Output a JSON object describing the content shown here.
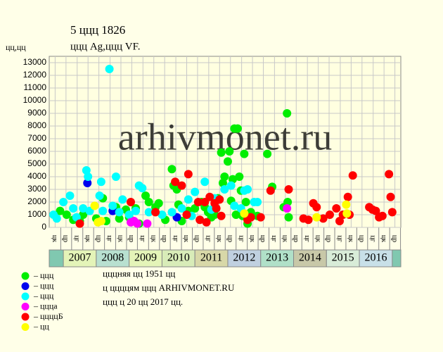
{
  "chart_data": {
    "type": "scatter",
    "title": "5 ццц 1826",
    "subtitle": "ццц Ag,ццц VF.",
    "y_label": "цц,цц",
    "watermark": "arhivmonet.ru",
    "notes": [
      "цццняя цц 1951 цц",
      "ц ццццям ццц ARHIVMONET.RU",
      "ццц ц 20 цц 2017 цц."
    ],
    "grid": true,
    "xlim": [
      2006.57,
      2017.26
    ],
    "ylim": [
      0,
      13500
    ],
    "yticks": [
      0,
      1000,
      2000,
      3000,
      4000,
      5000,
      6000,
      7000,
      8000,
      9000,
      10000,
      11000,
      12000,
      13000
    ],
    "xticks": [
      {
        "value": 2006.75,
        "label": "цк"
      },
      {
        "value": 2007.08,
        "label": "цр"
      },
      {
        "value": 2007.42,
        "label": "цг"
      },
      {
        "value": 2007.75,
        "label": "цк"
      },
      {
        "value": 2008.08,
        "label": "цр"
      },
      {
        "value": 2008.42,
        "label": "цг"
      },
      {
        "value": 2008.75,
        "label": "цк"
      },
      {
        "value": 2009.08,
        "label": "цр"
      },
      {
        "value": 2009.42,
        "label": "цг"
      },
      {
        "value": 2009.75,
        "label": "цк"
      },
      {
        "value": 2010.08,
        "label": "цр"
      },
      {
        "value": 2010.42,
        "label": "цг"
      },
      {
        "value": 2010.75,
        "label": "цк"
      },
      {
        "value": 2011.08,
        "label": "цр"
      },
      {
        "value": 2011.42,
        "label": "цг"
      },
      {
        "value": 2011.75,
        "label": "цк"
      },
      {
        "value": 2012.08,
        "label": "цр"
      },
      {
        "value": 2012.42,
        "label": "цг"
      },
      {
        "value": 2012.75,
        "label": "цк"
      },
      {
        "value": 2013.08,
        "label": "цр"
      },
      {
        "value": 2013.42,
        "label": "цг"
      },
      {
        "value": 2013.75,
        "label": "цк"
      },
      {
        "value": 2014.08,
        "label": "цр"
      },
      {
        "value": 2014.42,
        "label": "цг"
      },
      {
        "value": 2014.75,
        "label": "цк"
      },
      {
        "value": 2015.08,
        "label": "цр"
      },
      {
        "value": 2015.42,
        "label": "цг"
      },
      {
        "value": 2015.75,
        "label": "цк"
      },
      {
        "value": 2016.08,
        "label": "цр"
      },
      {
        "value": 2016.42,
        "label": "цг"
      },
      {
        "value": 2016.75,
        "label": "цк"
      },
      {
        "value": 2017.08,
        "label": "цр"
      }
    ],
    "years": [
      2007,
      2008,
      2009,
      2010,
      2011,
      2012,
      2013,
      2014,
      2015,
      2016
    ],
    "year_colors": [
      "#e4f4b8",
      "#b8e0d0",
      "#e4f4b8",
      "#d8ecb8",
      "#d8d8a8",
      "#c0d0e0",
      "#b0e0c8",
      "#c8c8a8",
      "#d8ecd8",
      "#c8e0e8"
    ],
    "series": [
      {
        "name": "– ццц",
        "color": "#00ee00",
        "x": [
          2006.9,
          2007.1,
          2007.3,
          2007.5,
          2007.6,
          2008.0,
          2008.2,
          2008.3,
          2008.6,
          2008.7,
          2008.9,
          2009.0,
          2009.2,
          2009.3,
          2009.5,
          2009.6,
          2009.8,
          2009.9,
          2010.1,
          2010.3,
          2010.35,
          2010.45,
          2010.5,
          2010.6,
          2010.8,
          2011.0,
          2011.2,
          2011.4,
          2011.6,
          2011.7,
          2011.8,
          2011.85,
          2011.9,
          2012.0,
          2012.05,
          2012.15,
          2012.2,
          2012.3,
          2012.35,
          2012.4,
          2012.45,
          2012.5,
          2012.55,
          2012.7,
          2012.9,
          2013.2,
          2013.35,
          2013.7,
          2013.8,
          2013.82,
          2013.85,
          2011.3,
          2011.5,
          2012.1,
          2012.25,
          2012.6
        ],
        "values": [
          1300,
          1000,
          600,
          500,
          1000,
          700,
          2300,
          500,
          1600,
          700,
          1400,
          800,
          1500,
          300,
          2500,
          2000,
          1600,
          1900,
          600,
          4600,
          3300,
          3000,
          1800,
          500,
          1300,
          1500,
          2000,
          1200,
          1000,
          2300,
          5900,
          3500,
          4000,
          5200,
          6000,
          3800,
          7800,
          7800,
          4000,
          2900,
          900,
          5800,
          2000,
          1200,
          900,
          5800,
          3200,
          1600,
          9000,
          2000,
          800,
          1600,
          800,
          2100,
          1000,
          300
        ]
      },
      {
        "name": "– ццц",
        "color": "#0000ee",
        "x": [
          2007.73,
          2008.5,
          2010.45
        ],
        "values": [
          3500,
          1300,
          800
        ]
      },
      {
        "name": "– ццц",
        "color": "#00ffff",
        "x": [
          2006.7,
          2006.8,
          2007.0,
          2007.2,
          2007.3,
          2007.4,
          2007.6,
          2007.7,
          2007.75,
          2007.8,
          2008.1,
          2008.15,
          2008.2,
          2008.4,
          2008.5,
          2008.6,
          2008.7,
          2008.8,
          2009.0,
          2009.2,
          2009.3,
          2009.4,
          2009.6,
          2010.0,
          2010.3,
          2010.6,
          2010.8,
          2011.0,
          2011.3,
          2011.6,
          2011.9,
          2012.1,
          2012.2,
          2012.4,
          2012.5,
          2012.6,
          2012.8,
          2012.9,
          2011.5,
          2010.9
        ],
        "values": [
          1000,
          700,
          2000,
          2500,
          1500,
          800,
          1500,
          4500,
          4000,
          1300,
          2500,
          3600,
          1300,
          12500,
          1700,
          4000,
          1200,
          2200,
          1000,
          1300,
          3300,
          3100,
          1200,
          1000,
          1200,
          1500,
          2200,
          2800,
          3600,
          2300,
          3000,
          3300,
          1700,
          1500,
          2900,
          3000,
          2000,
          2000,
          1400,
          900
        ]
      },
      {
        "name": "– ццца",
        "color": "#ff00ff",
        "x": [
          2009.05,
          2009.15,
          2009.25,
          2009.55,
          2013.8
        ],
        "values": [
          400,
          500,
          300,
          300,
          1500
        ]
      },
      {
        "name": "– ццццБ",
        "color": "#ff0000",
        "x": [
          2007.5,
          2009.05,
          2009.8,
          2010.4,
          2010.6,
          2010.75,
          2010.8,
          2011.1,
          2011.15,
          2011.3,
          2011.35,
          2011.45,
          2011.6,
          2011.65,
          2011.75,
          2011.8,
          2012.6,
          2012.7,
          2013.0,
          2013.3,
          2013.85,
          2014.3,
          2014.45,
          2014.6,
          2014.7,
          2014.9,
          2015.1,
          2015.3,
          2015.4,
          2015.5,
          2015.65,
          2015.7,
          2015.8,
          2016.3,
          2016.4,
          2016.5,
          2016.6,
          2016.7,
          2016.9,
          2016.95,
          2017.0
        ],
        "values": [
          300,
          2000,
          1200,
          3600,
          3300,
          1000,
          4200,
          2000,
          600,
          2000,
          400,
          2400,
          1900,
          1500,
          2200,
          900,
          600,
          800,
          800,
          2900,
          3000,
          700,
          600,
          1900,
          1600,
          700,
          1000,
          1500,
          500,
          1000,
          2400,
          1000,
          4100,
          1600,
          1400,
          1300,
          800,
          900,
          4200,
          2400,
          1200
        ]
      },
      {
        "name": "– цц",
        "color": "#ffff00",
        "x": [
          2007.95,
          2008.05,
          2008.15,
          2012.5,
          2014.7,
          2015.6,
          2015.62
        ],
        "values": [
          1700,
          400,
          500,
          1100,
          800,
          1800,
          1100
        ]
      }
    ]
  }
}
